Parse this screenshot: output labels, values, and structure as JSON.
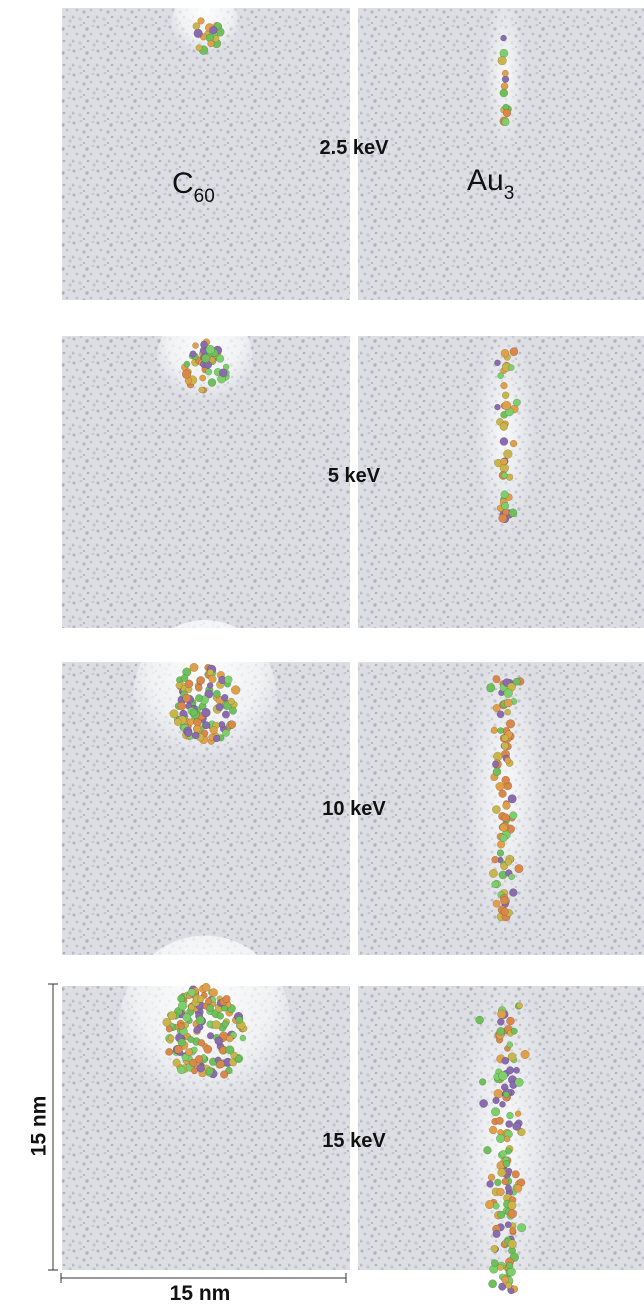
{
  "labels": {
    "left": {
      "base": "C",
      "sub": "60"
    },
    "right": {
      "base": "Au",
      "sub": "3"
    }
  },
  "rows": [
    {
      "energy": "2.5 keV"
    },
    {
      "energy": "5 keV"
    },
    {
      "energy": "10 keV"
    },
    {
      "energy": "15 keV"
    }
  ],
  "scale": {
    "vertical": "15 nm",
    "horizontal": "15 nm"
  }
}
